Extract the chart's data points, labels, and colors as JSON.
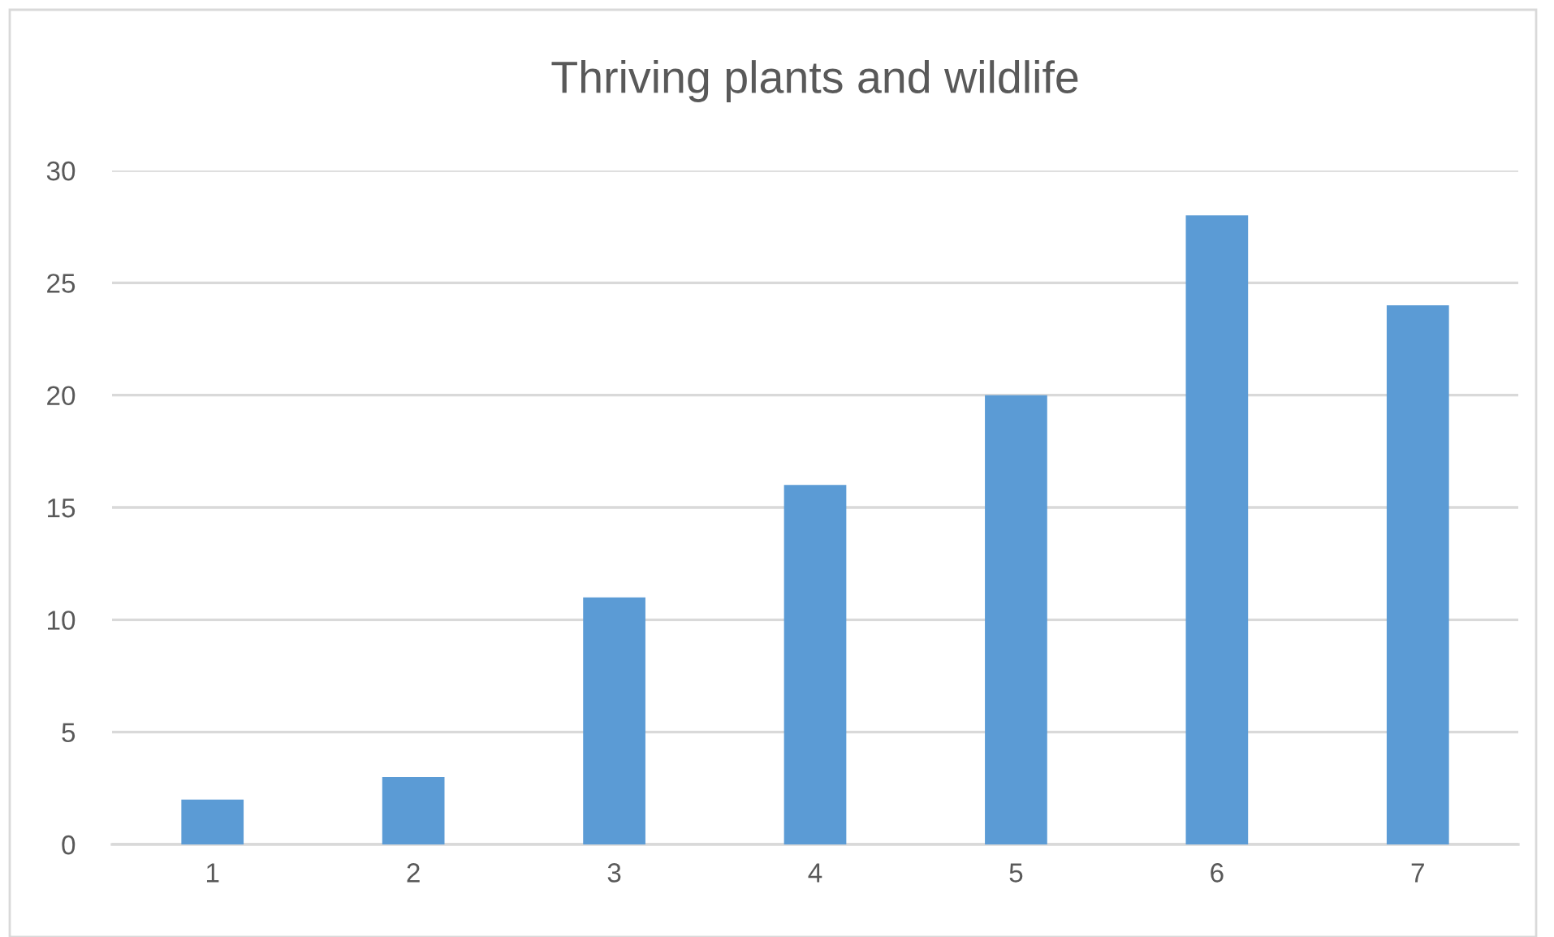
{
  "chart_data": {
    "type": "bar",
    "title": "Thriving plants and wildlife",
    "categories": [
      "1",
      "2",
      "3",
      "4",
      "5",
      "6",
      "7"
    ],
    "values": [
      2,
      3,
      11,
      16,
      20,
      28,
      24
    ],
    "color": "#5b9bd5",
    "ylim": [
      0,
      30
    ],
    "yticks": [
      0,
      5,
      10,
      15,
      20,
      25,
      30
    ],
    "grid": "y"
  }
}
